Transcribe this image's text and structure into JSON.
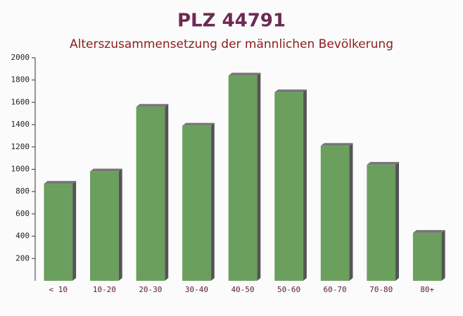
{
  "chart_data": {
    "type": "bar",
    "title": "PLZ 44791",
    "subtitle": "Alterszusammensetzung der männlichen Bevölkerung",
    "categories": [
      "< 10",
      "10-20",
      "20-30",
      "30-40",
      "40-50",
      "50-60",
      "60-70",
      "70-80",
      "80+"
    ],
    "values": [
      870,
      980,
      1560,
      1390,
      1840,
      1690,
      1210,
      1040,
      430
    ],
    "color": "#6a9f5e",
    "ylim": [
      0,
      2000
    ],
    "yticks": [
      200,
      400,
      600,
      800,
      1000,
      1200,
      1400,
      1600,
      1800,
      2000
    ],
    "grid": false
  }
}
